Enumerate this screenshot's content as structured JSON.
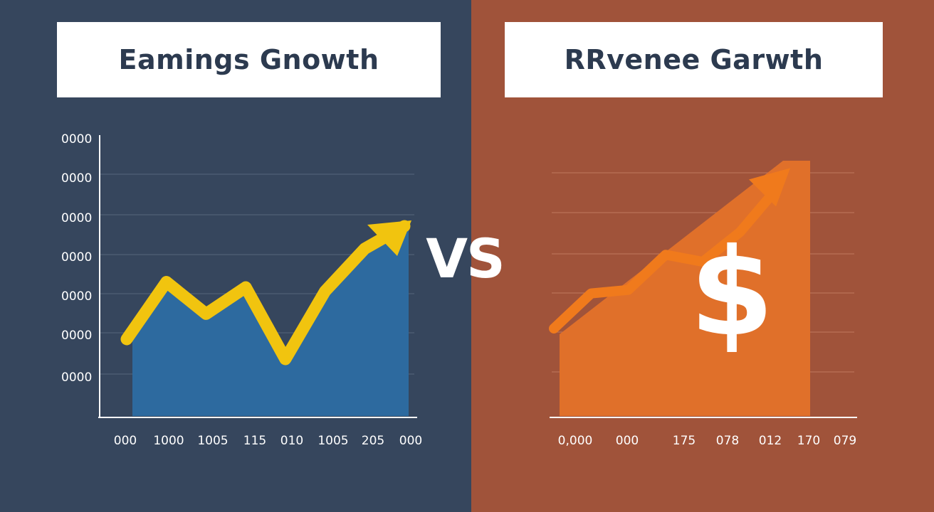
{
  "vs_label": "VS",
  "chart_data": [
    {
      "type": "area",
      "title": "Eamings Gnowth",
      "x_tick_labels": [
        "000",
        "1000",
        "1005",
        "115",
        "010",
        "1005",
        "205",
        "000"
      ],
      "y_tick_labels": [
        "0000",
        "0000",
        "0000",
        "0000",
        "0000",
        "0000",
        "0000"
      ],
      "x": [
        0,
        1,
        2,
        3,
        4,
        5,
        6,
        7
      ],
      "values": [
        0.15,
        0.58,
        0.34,
        0.54,
        0.0,
        0.51,
        0.83,
        1.0
      ],
      "ylim": [
        0,
        1
      ],
      "grid": true,
      "line_color": "#f1c40f",
      "fill_color": "#2d6a9f",
      "trend_arrow": true
    },
    {
      "type": "area",
      "title": "RRvenee Garwth",
      "x_tick_labels": [
        "0,000",
        "000",
        "175",
        "078",
        "012",
        "170",
        "079"
      ],
      "x": [
        0,
        1,
        2,
        3,
        4,
        5,
        6
      ],
      "values": [
        0.0,
        0.2,
        0.22,
        0.42,
        0.38,
        0.55,
        0.8
      ],
      "ylim": [
        0,
        1
      ],
      "grid": true,
      "line_color": "#f07a1c",
      "fill_color": "#e0702a",
      "currency_symbol": "$",
      "trend_arrow": true
    }
  ]
}
